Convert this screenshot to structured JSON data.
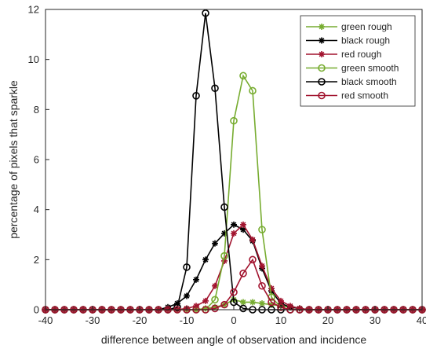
{
  "chart_data": {
    "type": "line",
    "title": "",
    "xlabel": "difference between angle of observation and incidence",
    "ylabel": "percentage of pixels that sparkle",
    "xlim": [
      -40,
      40
    ],
    "ylim": [
      0,
      12
    ],
    "xticks": [
      -40,
      -30,
      -20,
      -10,
      0,
      10,
      20,
      30,
      40
    ],
    "yticks": [
      0,
      2,
      4,
      6,
      8,
      10,
      12
    ],
    "grid": false,
    "legend_position": "top-right",
    "x": [
      -40,
      -38,
      -36,
      -34,
      -32,
      -30,
      -28,
      -26,
      -24,
      -22,
      -20,
      -18,
      -16,
      -14,
      -12,
      -10,
      -8,
      -6,
      -4,
      -2,
      0,
      2,
      4,
      6,
      8,
      10,
      12,
      14,
      16,
      18,
      20,
      22,
      24,
      26,
      28,
      30,
      32,
      34,
      36,
      38,
      40
    ],
    "series": [
      {
        "name": "green rough",
        "color": "#77ac30",
        "marker": "asterisk",
        "values": [
          0,
          0,
          0,
          0,
          0,
          0,
          0,
          0,
          0,
          0,
          0,
          0,
          0,
          0,
          0,
          0,
          0,
          0.05,
          0.1,
          0.2,
          0.4,
          0.3,
          0.3,
          0.25,
          0.2,
          0.15,
          0.1,
          0.05,
          0,
          0,
          0,
          0,
          0,
          0,
          0,
          0,
          0,
          0,
          0,
          0,
          0
        ]
      },
      {
        "name": "black rough",
        "color": "#000000",
        "marker": "asterisk",
        "values": [
          0,
          0,
          0,
          0,
          0,
          0,
          0,
          0,
          0,
          0,
          0,
          0,
          0,
          0.1,
          0.25,
          0.55,
          1.2,
          2.0,
          2.65,
          3.05,
          3.4,
          3.2,
          2.75,
          1.65,
          0.75,
          0.25,
          0.1,
          0.05,
          0,
          0,
          0,
          0,
          0,
          0,
          0,
          0,
          0,
          0,
          0,
          0,
          0
        ]
      },
      {
        "name": "red rough",
        "color": "#a2142f",
        "marker": "asterisk",
        "values": [
          0,
          0,
          0,
          0,
          0,
          0,
          0,
          0,
          0,
          0,
          0,
          0,
          0,
          0,
          0,
          0.05,
          0.15,
          0.35,
          0.95,
          1.95,
          3.05,
          3.4,
          2.8,
          1.75,
          0.85,
          0.35,
          0.15,
          0.05,
          0,
          0,
          0,
          0,
          0,
          0,
          0,
          0,
          0,
          0,
          0,
          0,
          0
        ]
      },
      {
        "name": "green smooth",
        "color": "#77ac30",
        "marker": "circle",
        "values": [
          0,
          0,
          0,
          0,
          0,
          0,
          0,
          0,
          0,
          0,
          0,
          0,
          0,
          0,
          0,
          0,
          0,
          0,
          0.4,
          2.15,
          7.55,
          9.35,
          8.75,
          3.2,
          0.5,
          0.1,
          0,
          0,
          0,
          0,
          0,
          0,
          0,
          0,
          0,
          0,
          0,
          0,
          0,
          0,
          0
        ]
      },
      {
        "name": "black smooth",
        "color": "#000000",
        "marker": "circle",
        "values": [
          0,
          0,
          0,
          0,
          0,
          0,
          0,
          0,
          0,
          0,
          0,
          0,
          0,
          0,
          0.1,
          1.7,
          8.55,
          11.85,
          8.85,
          4.1,
          0.3,
          0.05,
          0,
          0,
          0,
          0,
          0,
          0,
          0,
          0,
          0,
          0,
          0,
          0,
          0,
          0,
          0,
          0,
          0,
          0,
          0
        ]
      },
      {
        "name": "red smooth",
        "color": "#a2142f",
        "marker": "circle",
        "values": [
          0,
          0,
          0,
          0,
          0,
          0,
          0,
          0,
          0,
          0,
          0,
          0,
          0,
          0,
          0,
          0,
          0,
          0,
          0.05,
          0.2,
          0.7,
          1.45,
          2.0,
          0.95,
          0.3,
          0.1,
          0,
          0,
          0,
          0,
          0,
          0,
          0,
          0,
          0,
          0,
          0,
          0,
          0,
          0,
          0
        ]
      }
    ]
  }
}
